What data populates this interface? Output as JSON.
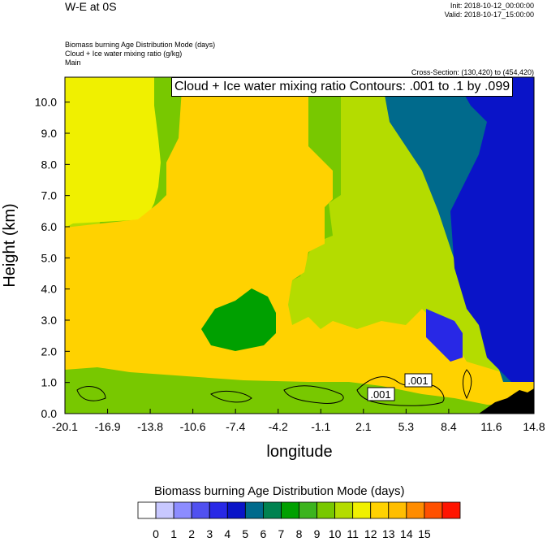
{
  "header": {
    "title": "W-E at 0S",
    "init": "Init: 2018-10-12_00:00:00",
    "valid": "Valid: 2018-10-17_15:00:00"
  },
  "fields": [
    "Biomass burning Age Distribution Mode   (days)",
    "Cloud + Ice water mixing ratio   (g/kg)",
    "Main"
  ],
  "cross_section": "Cross-Section: (130,420) to (454,420)",
  "contour_label": "Cloud + Ice water mixing ratio Contours: .001 to .1 by .099",
  "contour_tags": [
    ".001",
    ".001"
  ],
  "colorbar": {
    "title": "Biomass burning Age Distribution Mode  (days)",
    "labels": [
      "0",
      "1",
      "2",
      "3",
      "4",
      "5",
      "6",
      "7",
      "8",
      "9",
      "10",
      "11",
      "12",
      "13",
      "14",
      "15"
    ],
    "colors": [
      "#ffffff",
      "#c8c8ff",
      "#8c8cff",
      "#5050f0",
      "#2828e6",
      "#0a14c8",
      "#006a8c",
      "#008250",
      "#00a000",
      "#3cb41e",
      "#78c800",
      "#b4dc00",
      "#f0f000",
      "#ffd200",
      "#ffbe00",
      "#ff8c00",
      "#ff5000",
      "#ff1400"
    ]
  },
  "chart_data": {
    "type": "heatmap",
    "title": "Biomass burning Age Distribution Mode (days)",
    "xlabel": "longitude",
    "ylabel": "Height (km)",
    "xticks": [
      "-20.1",
      "-16.9",
      "-13.8",
      "-10.6",
      "-7.4",
      "-4.2",
      "-1.1",
      "2.1",
      "5.3",
      "8.4",
      "11.6",
      "14.8"
    ],
    "yticks": [
      "0.0",
      "1.0",
      "2.0",
      "3.0",
      "4.0",
      "5.0",
      "6.0",
      "7.0",
      "8.0",
      "9.0",
      "10.0"
    ],
    "xlim": [
      -20.1,
      14.8
    ],
    "ylim": [
      0,
      10.8
    ],
    "regions": [
      {
        "value": 12,
        "description": "upper west layer (yellow)"
      },
      {
        "value": 13,
        "description": "mid-level layer (orange)"
      },
      {
        "value": 11,
        "description": "upper central layer"
      },
      {
        "value": 10,
        "description": "upper east layer"
      },
      {
        "value": 7,
        "description": "eastern mid-upper"
      },
      {
        "value": 5,
        "description": "far east / embedded pocket"
      },
      {
        "value": 8,
        "description": "green pocket near x=-7.4, z=2.7"
      },
      {
        "value": 9,
        "description": "near-surface layer"
      }
    ]
  }
}
